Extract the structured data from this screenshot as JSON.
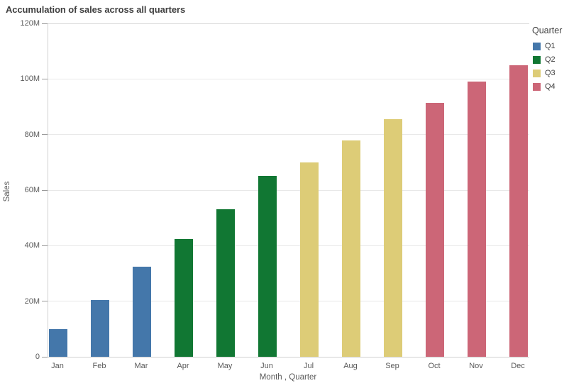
{
  "chart_data": {
    "type": "bar",
    "title": "Accumulation of sales across all quarters",
    "xlabel": "Month , Quarter",
    "ylabel": "Sales",
    "value_unit": "M",
    "ylim": [
      0,
      120
    ],
    "ytick_values": [
      0,
      20,
      40,
      60,
      80,
      100,
      120
    ],
    "ytick_labels": [
      "0",
      "20M",
      "40M",
      "60M",
      "80M",
      "100M",
      "120M"
    ],
    "grid": "horizontal",
    "categories": [
      "Jan",
      "Feb",
      "Mar",
      "Apr",
      "May",
      "Jun",
      "Jul",
      "Aug",
      "Sep",
      "Oct",
      "Nov",
      "Dec"
    ],
    "values": [
      10,
      20.5,
      32.5,
      42.5,
      53,
      65,
      70,
      78,
      85.5,
      91.5,
      99,
      105
    ],
    "quarter_of_month": [
      "Q1",
      "Q1",
      "Q1",
      "Q2",
      "Q2",
      "Q2",
      "Q3",
      "Q3",
      "Q3",
      "Q4",
      "Q4",
      "Q4"
    ],
    "legend": {
      "title": "Quarter",
      "position": "top-right",
      "entries": [
        {
          "label": "Q1",
          "color": "#4477aa"
        },
        {
          "label": "Q2",
          "color": "#117733"
        },
        {
          "label": "Q3",
          "color": "#ddcc77"
        },
        {
          "label": "Q4",
          "color": "#cc6677"
        }
      ]
    }
  },
  "colors": {
    "background": "#ffffff",
    "grid": "#e8e8e8",
    "top_gridline": "#d9d9d9",
    "axis_line": "#d0d0d0",
    "tick_mark": "#999999",
    "axis_text": "#595959",
    "title_text": "#404040",
    "legend_text": "#404040"
  }
}
